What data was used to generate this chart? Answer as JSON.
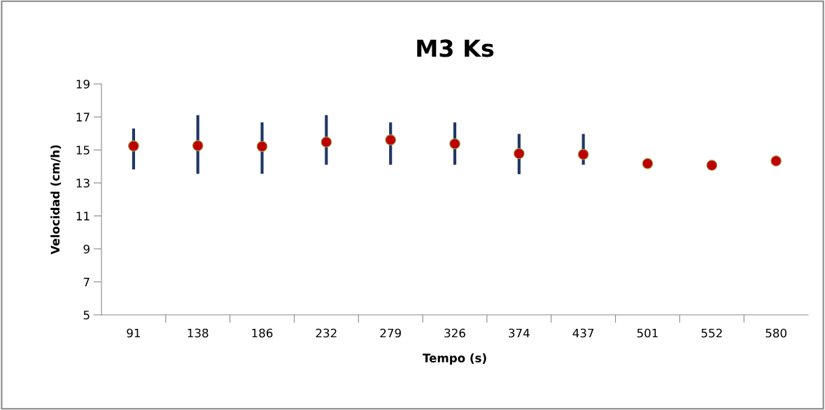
{
  "chart_data": {
    "type": "scatter",
    "title": "M3 Ks",
    "xlabel": "Tempo (s)",
    "ylabel": "Velocidad (cm/h)",
    "categories": [
      "91",
      "138",
      "186",
      "232",
      "279",
      "326",
      "374",
      "437",
      "501",
      "552",
      "580"
    ],
    "series": [
      {
        "color": "#c00000",
        "values": [
          15.24,
          15.26,
          15.21,
          15.48,
          15.61,
          15.37,
          14.78,
          14.73,
          14.17,
          14.07,
          14.33
        ],
        "errors": [
          [
            13.82,
            16.3
          ],
          [
            13.55,
            17.11
          ],
          [
            13.55,
            16.67
          ],
          [
            14.1,
            17.11
          ],
          [
            14.1,
            16.67
          ],
          [
            14.1,
            16.67
          ],
          [
            13.53,
            15.97
          ],
          [
            14.1,
            15.97
          ],
          null,
          null,
          null
        ]
      }
    ],
    "ylim": [
      5,
      19
    ],
    "yticks": [
      5,
      7,
      9,
      11,
      13,
      15,
      17,
      19
    ],
    "grid": false,
    "marker": "circle"
  }
}
